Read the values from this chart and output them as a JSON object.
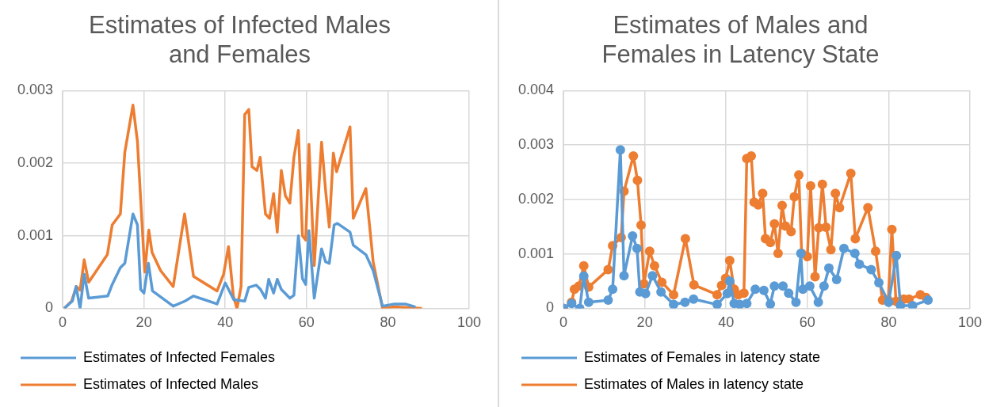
{
  "chart_data": [
    {
      "type": "line",
      "title": "Estimates of Infected Males and Females",
      "xlim": [
        0,
        100
      ],
      "xticks": [
        0,
        20,
        40,
        60,
        80,
        100
      ],
      "ylim": [
        0,
        0.003
      ],
      "yticks": [
        0,
        0.001,
        0.002,
        0.003
      ],
      "grid": true,
      "legend": "bottom",
      "marker": "none",
      "series": [
        {
          "name": "Estimates of Infected Females",
          "color": "#5b9bd5",
          "x": [
            0.4,
            2.4,
            3.3,
            4.3,
            5.3,
            6.4,
            11.1,
            12.2,
            14.2,
            15.3,
            17.3,
            18.4,
            19.2,
            20,
            21.1,
            22.1,
            27.2,
            30.1,
            32.2,
            38,
            40,
            42.1,
            44.8,
            45.8,
            47.6,
            48.7,
            49.9,
            50.7,
            51.9,
            52.8,
            53.8,
            55.9,
            56.9,
            58,
            59,
            59.8,
            60.6,
            61.9,
            63.7,
            64.7,
            65.6,
            66.8,
            67.6,
            70.7,
            71.5,
            74.6,
            76.4,
            78.7,
            81.6,
            84.3,
            86.8
          ],
          "values": [
            0,
            0.0001,
            0.0003,
            0,
            0.00047,
            0.00014,
            0.00017,
            0.00033,
            0.00056,
            0.00062,
            0.0013,
            0.00115,
            0.00026,
            0.00021,
            0.00062,
            0.00024,
            3e-05,
            0.0001,
            0.00017,
            6e-05,
            0.00035,
            0.00012,
            0.0001,
            0.00029,
            0.00032,
            0.00026,
            0.00014,
            0.0004,
            0.00021,
            0.0004,
            0.00026,
            0.00014,
            0.00018,
            0.001,
            0.00041,
            0.00033,
            0.00107,
            0.00014,
            0.00082,
            0.00064,
            0.00062,
            0.00115,
            0.00117,
            0.00105,
            0.00087,
            0.00074,
            0.00052,
            3e-05,
            6e-05,
            6e-05,
            2e-05
          ]
        },
        {
          "name": "Estimates of Infected Males",
          "color": "#ed7d31",
          "x": [
            0.4,
            2.2,
            3.4,
            4.3,
            5.3,
            6.4,
            11,
            12.2,
            14.2,
            15.3,
            17.3,
            18.4,
            20.2,
            21.2,
            22,
            24.1,
            27.2,
            30,
            32.2,
            38,
            39.6,
            40.8,
            42,
            42.9,
            43.9,
            44.8,
            45.8,
            46.6,
            47.8,
            48.6,
            49.9,
            50.9,
            51.9,
            52.8,
            53.8,
            54.8,
            55.9,
            56.9,
            58,
            59,
            59.8,
            60.6,
            61.9,
            63.7,
            64.7,
            65.6,
            66.6,
            67.4,
            70.7,
            71.5,
            74.6,
            76.4,
            78.7,
            81.6,
            88.4
          ],
          "values": [
            0,
            0.0001,
            0.0003,
            0.00025,
            0.00067,
            0.00036,
            0.00074,
            0.00115,
            0.0013,
            0.00215,
            0.0028,
            0.0023,
            0.0005,
            0.00108,
            0.00077,
            0.00052,
            0.0003,
            0.0013,
            0.00044,
            0.00024,
            0.00047,
            0.00085,
            0.00017,
            0,
            0.0003,
            0.00267,
            0.00274,
            0.00195,
            0.0019,
            0.00208,
            0.0013,
            0.00124,
            0.00158,
            0.00105,
            0.0019,
            0.00155,
            0.00145,
            0.00208,
            0.00245,
            0.001,
            0.00094,
            0.00226,
            0.00059,
            0.00229,
            0.00162,
            0.00112,
            0.00214,
            0.00188,
            0.0025,
            0.00124,
            0.00165,
            0.00064,
            0,
            2e-05,
            0
          ]
        }
      ]
    },
    {
      "type": "line",
      "title": "Estimates of Males and Females in Latency State",
      "xlim": [
        0,
        100
      ],
      "xticks": [
        0,
        20,
        40,
        60,
        80,
        100
      ],
      "ylim": [
        0,
        0.004
      ],
      "yticks": [
        0,
        0.001,
        0.002,
        0.003,
        0.004
      ],
      "grid": true,
      "legend": "bottom",
      "marker": "circle",
      "series": [
        {
          "name": "Estimates of Females in latency state",
          "color": "#5b9bd5",
          "x": [
            0,
            2,
            4,
            5,
            6.2,
            11,
            12.1,
            14,
            14.9,
            17,
            18.1,
            18.8,
            20.2,
            21.9,
            24,
            27.1,
            29.9,
            32,
            37.8,
            40.3,
            40.9,
            42,
            43.4,
            45.1,
            47.2,
            49.3,
            50.9,
            51.9,
            54,
            55.4,
            57.2,
            58.4,
            58.9,
            60.6,
            62.7,
            64.1,
            65.3,
            67.2,
            69,
            71.7,
            72.8,
            75.7,
            77.6,
            80,
            81.9,
            82.9,
            85.9,
            89.7
          ],
          "values": [
            0,
            9e-05,
            0,
            0.00059,
            0.00011,
            0.00015,
            0.00035,
            0.00291,
            0.0006,
            0.00133,
            0.0011,
            0.0003,
            0.00027,
            0.0006,
            0.0003,
            7e-05,
            0.00011,
            0.00017,
            7e-05,
            0.00027,
            0.0005,
            9e-05,
            7e-05,
            9e-05,
            0.00035,
            0.00033,
            8e-05,
            0.00041,
            0.00041,
            0.00028,
            0.00011,
            0.00101,
            0.00035,
            0.00041,
            0.00011,
            0.00041,
            0.00074,
            0.00053,
            0.0011,
            0.00101,
            0.00081,
            0.00071,
            0.00047,
            0.00011,
            0.00097,
            5e-05,
            5e-05,
            0.00015
          ]
        },
        {
          "name": "Estimates of Males in latency state",
          "color": "#ed7d31",
          "x": [
            0,
            2,
            2.7,
            3.8,
            5,
            6.2,
            11,
            12.1,
            14.2,
            14.9,
            17.2,
            18.2,
            19.1,
            19.8,
            21.2,
            22.4,
            24.2,
            27.1,
            30,
            32.1,
            37.8,
            38.9,
            39.9,
            40.9,
            42,
            43,
            44.4,
            45.1,
            46.2,
            46.9,
            47.9,
            49,
            49.7,
            50.9,
            51.9,
            52.8,
            53.8,
            54.6,
            56,
            56.8,
            57.9,
            58.6,
            60,
            60.8,
            61.9,
            62.8,
            63.7,
            64.6,
            65.8,
            66.9,
            67.9,
            70.7,
            71.8,
            74.9,
            76.8,
            78.5,
            79.9,
            80.8,
            81.8,
            83.7,
            85,
            87.8,
            89.2
          ],
          "values": [
            0,
            0.00011,
            0.00035,
            0.00041,
            0.00078,
            0.00039,
            0.00071,
            0.00115,
            0.0013,
            0.00215,
            0.0028,
            0.00235,
            0.00153,
            0.00045,
            0.00105,
            0.00078,
            0.00048,
            0.00025,
            0.00128,
            0.00043,
            0.00025,
            0.00042,
            0.00055,
            0.00088,
            0.00035,
            0.00025,
            0.00028,
            0.00275,
            0.0028,
            0.00195,
            0.0019,
            0.00211,
            0.00128,
            0.00121,
            0.00155,
            0.00101,
            0.00189,
            0.00151,
            0.00141,
            0.00205,
            0.00245,
            0.00101,
            0.00095,
            0.00225,
            0.00058,
            0.00148,
            0.00228,
            0.00149,
            0.00108,
            0.00211,
            0.00185,
            0.00248,
            0.00128,
            0.00185,
            0.00105,
            0.00015,
            0.00015,
            0.00145,
            0.00013,
            0.00017,
            0.00017,
            0.00025,
            0.0002
          ]
        }
      ]
    }
  ]
}
